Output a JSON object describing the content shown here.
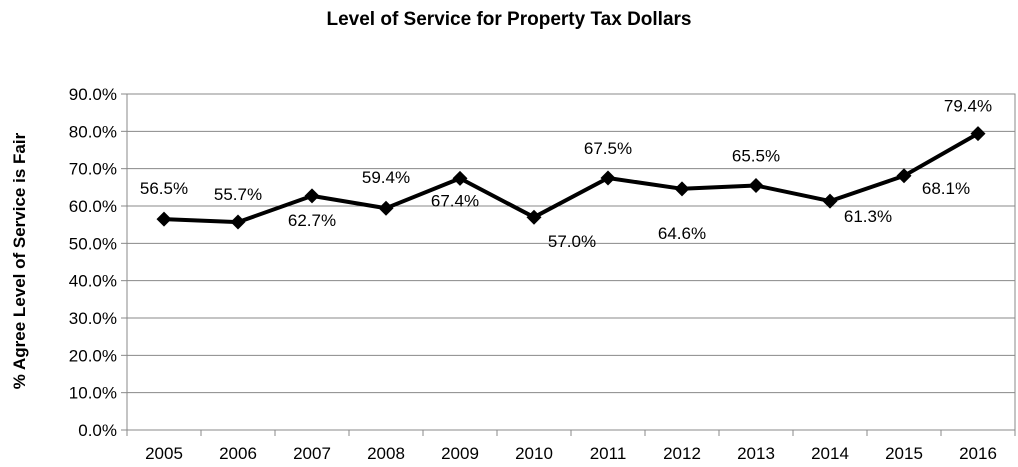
{
  "chart_data": {
    "type": "line",
    "title": "Level of Service for Property Tax Dollars",
    "xlabel": "",
    "ylabel": "% Agree Level of Service is Fair",
    "categories": [
      "2005",
      "2006",
      "2007",
      "2008",
      "2009",
      "2010",
      "2011",
      "2012",
      "2013",
      "2014",
      "2015",
      "2016"
    ],
    "series": [
      {
        "values": [
          56.5,
          55.7,
          62.7,
          59.4,
          67.4,
          57.0,
          67.5,
          64.6,
          65.5,
          61.3,
          68.1,
          79.4
        ],
        "labels": [
          "56.5%",
          "55.7%",
          "62.7%",
          "59.4%",
          "67.4%",
          "57.0%",
          "67.5%",
          "64.6%",
          "65.5%",
          "61.3%",
          "68.1%",
          "79.4%"
        ],
        "color": "#000000",
        "marker": "diamond"
      }
    ],
    "ylim": [
      0,
      90
    ],
    "yticks": [
      "0.0%",
      "10.0%",
      "20.0%",
      "30.0%",
      "40.0%",
      "50.0%",
      "60.0%",
      "70.0%",
      "80.0%",
      "90.0%"
    ],
    "grid": true,
    "legend": "none"
  }
}
